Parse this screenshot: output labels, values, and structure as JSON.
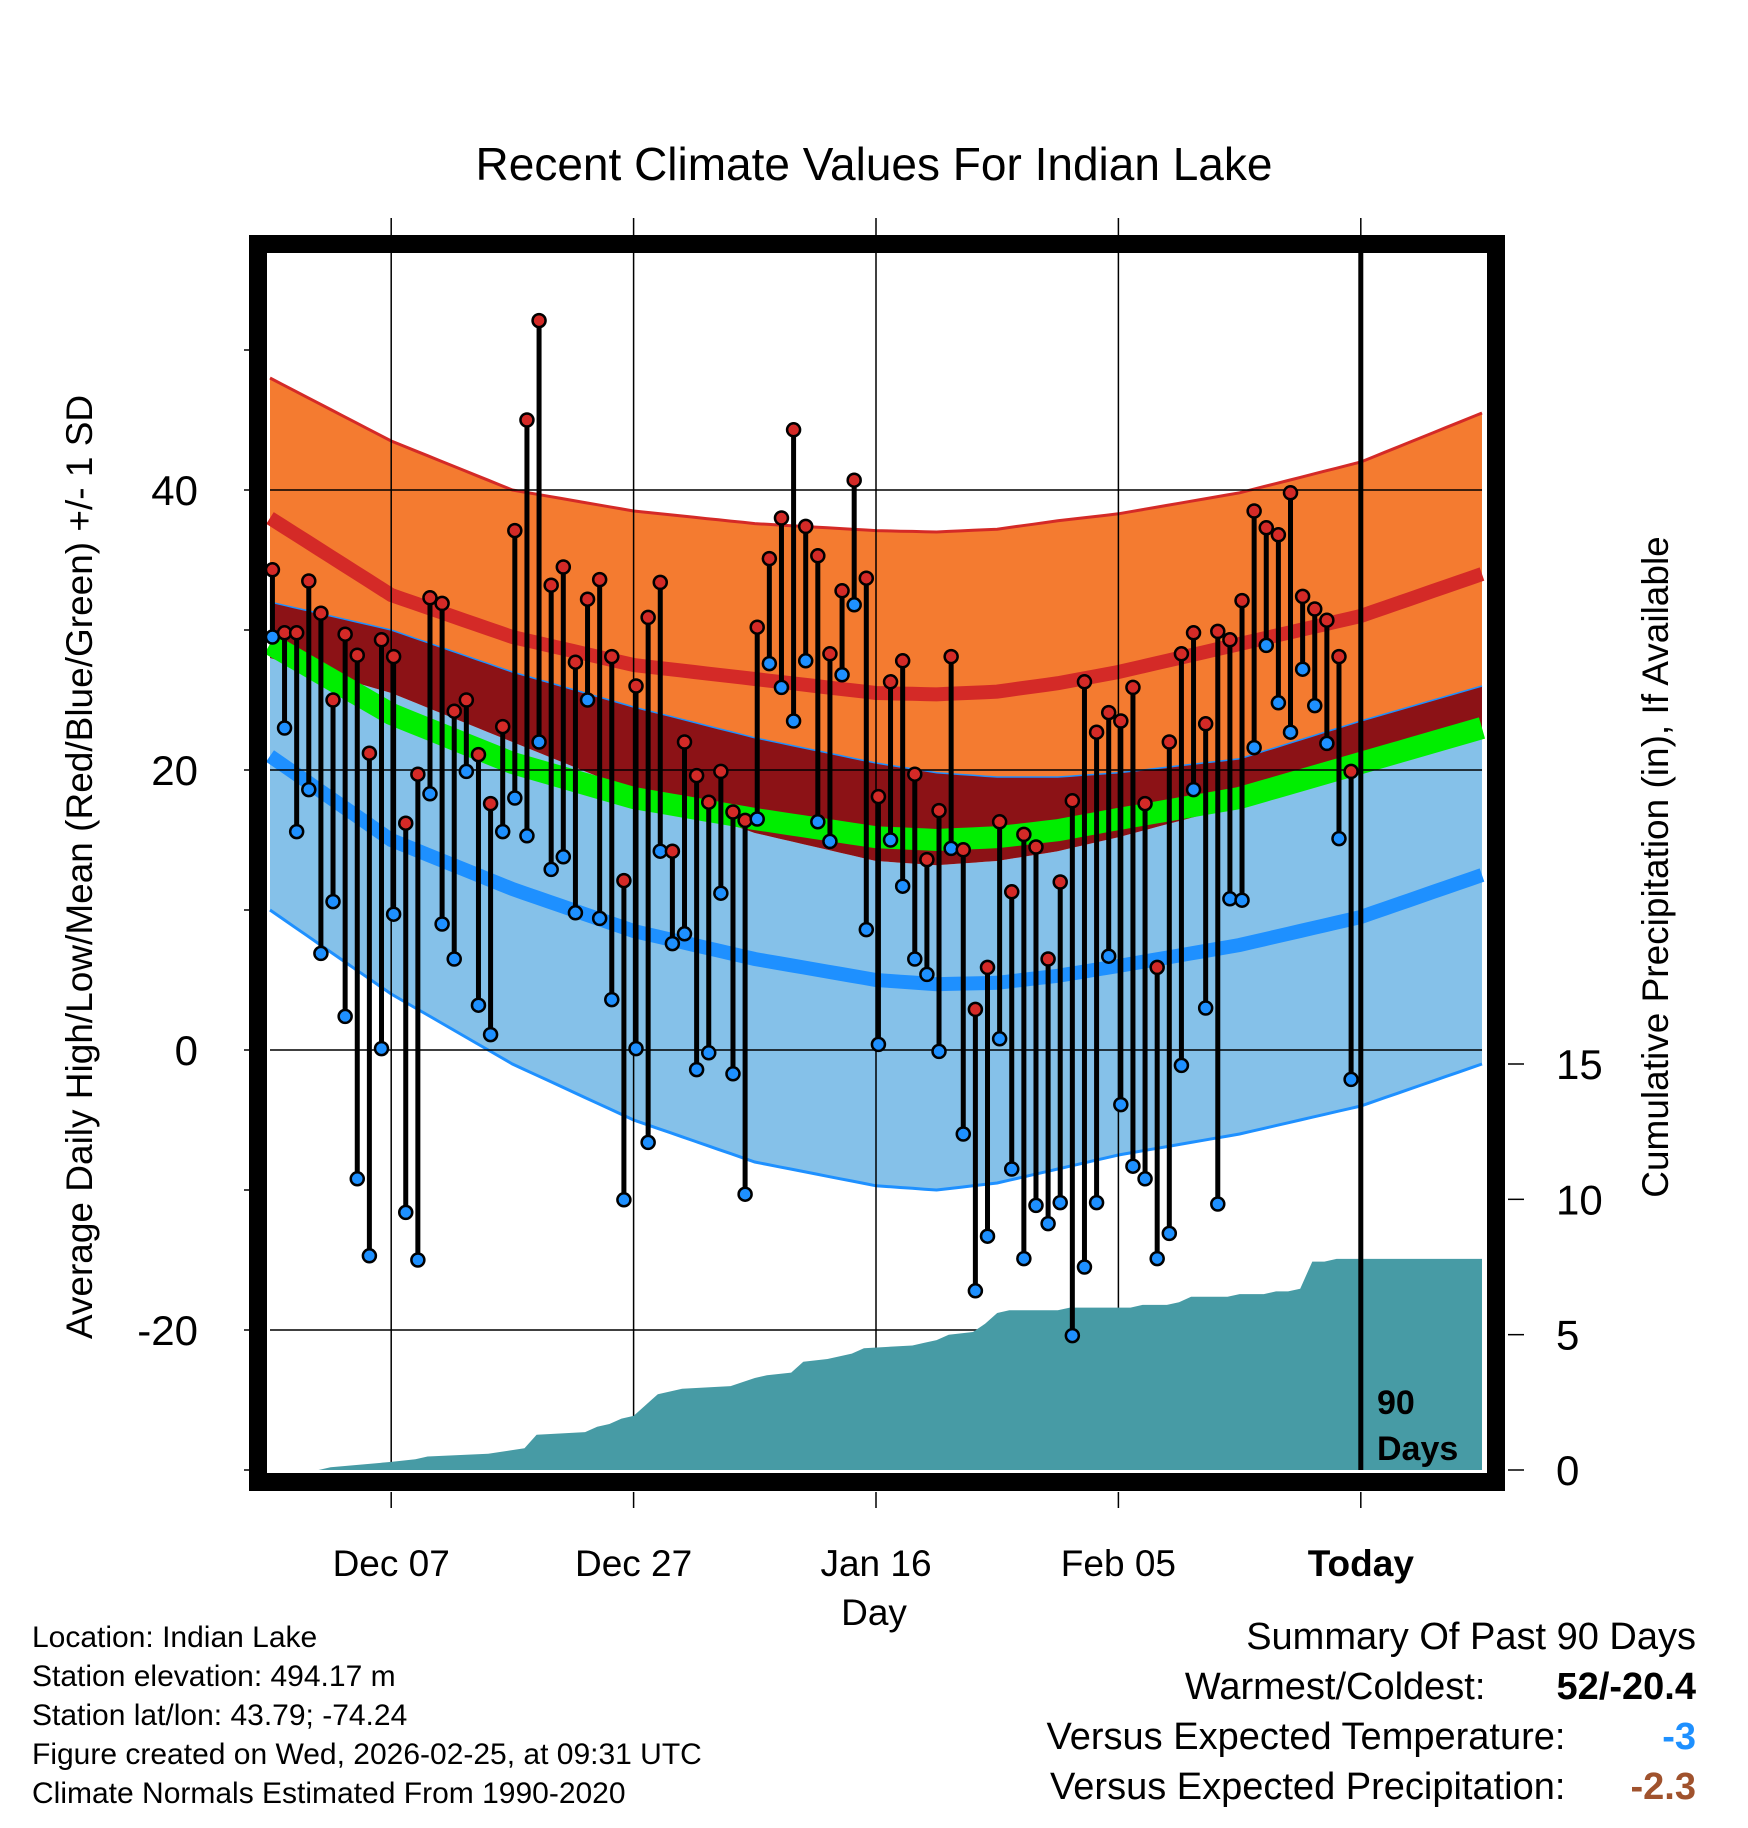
{
  "chart_data": {
    "type": "line",
    "title": "Recent Climate Values For Indian Lake",
    "xlabel": "Day",
    "ylabel": "Average Daily High/Low/Mean (Red/Blue/Green) +/- 1 SD",
    "y2label": "Cumulative Precipitation (in), If Available",
    "ylim": [
      -30,
      57
    ],
    "y2lim": [
      0,
      45
    ],
    "yticks": [
      -20,
      0,
      20,
      40
    ],
    "y2ticks": [
      0,
      5,
      10,
      15
    ],
    "xlim": [
      0,
      100
    ],
    "xticks": [
      {
        "day": 10,
        "label": "Dec 07"
      },
      {
        "day": 30,
        "label": "Dec 27"
      },
      {
        "day": 50,
        "label": "Jan 16"
      },
      {
        "day": 70,
        "label": "Feb 05"
      },
      {
        "day": 90,
        "label": "Today"
      }
    ],
    "today_day": 90,
    "marker_label": [
      "90",
      "Days"
    ],
    "normals": {
      "days": [
        0,
        10,
        20,
        30,
        40,
        50,
        55,
        60,
        65,
        70,
        80,
        90,
        100
      ],
      "high_mean": [
        38,
        32.5,
        29.5,
        27.5,
        26.5,
        25.5,
        25.4,
        25.6,
        26.2,
        27,
        29,
        31,
        34
      ],
      "high_sd_upper": [
        48,
        43.5,
        40,
        38.5,
        37.6,
        37.1,
        37,
        37.2,
        37.8,
        38.3,
        39.8,
        42,
        45.5
      ],
      "high_sd_lower": [
        32,
        30,
        27,
        24.5,
        22.3,
        20.5,
        19.8,
        19.5,
        19.5,
        19.8,
        20.8,
        23.5,
        26
      ],
      "low_mean": [
        21,
        15,
        11.5,
        8.5,
        6.5,
        5,
        4.7,
        4.8,
        5.3,
        6,
        7.5,
        9.5,
        12.5
      ],
      "low_sd_upper": [
        28,
        25.5,
        22,
        18.5,
        15.5,
        13.5,
        13.2,
        13.5,
        14.2,
        15.2,
        17.5,
        20,
        22.5
      ],
      "low_sd_lower": [
        10,
        4,
        -1,
        -5,
        -8,
        -9.7,
        -10,
        -9.5,
        -8.5,
        -7.5,
        -6,
        -4,
        -1
      ],
      "avg_mean": [
        29,
        24,
        20.5,
        18,
        16.5,
        15.2,
        15,
        15.2,
        15.7,
        16.5,
        18,
        20.5,
        23
      ]
    },
    "observed": {
      "days": [
        0,
        1,
        2,
        3,
        4,
        5,
        6,
        7,
        8,
        9,
        10,
        11,
        12,
        13,
        14,
        15,
        16,
        17,
        18,
        19,
        20,
        21,
        22,
        23,
        24,
        25,
        26,
        27,
        28,
        29,
        30,
        31,
        32,
        33,
        34,
        35,
        36,
        37,
        38,
        39,
        40,
        41,
        42,
        43,
        44,
        45,
        46,
        47,
        48,
        49,
        50,
        51,
        52,
        53,
        54,
        55,
        56,
        57,
        58,
        59,
        60,
        61,
        62,
        63,
        64,
        65,
        66,
        67,
        68,
        69,
        70,
        71,
        72,
        73,
        74,
        75,
        76,
        77,
        78,
        79,
        80,
        81,
        82,
        83,
        84,
        85,
        86,
        87,
        88,
        89
      ],
      "high": [
        34.3,
        29.8,
        29.8,
        33.5,
        31.2,
        25,
        29.7,
        28.2,
        21.2,
        29.3,
        28.1,
        16.2,
        19.7,
        32.3,
        31.9,
        24.2,
        25,
        21.1,
        17.6,
        23.1,
        37.1,
        45,
        52.1,
        33.2,
        34.5,
        27.7,
        32.2,
        33.6,
        28.1,
        12.1,
        26,
        30.9,
        33.4,
        14.2,
        22,
        19.6,
        17.7,
        19.9,
        17,
        16.4,
        30.2,
        35.1,
        38,
        44.3,
        37.4,
        35.3,
        28.3,
        32.8,
        40.7,
        33.7,
        18.1,
        26.3,
        27.8,
        19.7,
        13.6,
        17.1,
        28.1,
        14.3,
        2.9,
        5.9,
        16.3,
        11.3,
        15.4,
        14.5,
        6.5,
        12,
        17.8,
        26.3,
        22.7,
        24.1,
        23.5,
        25.9,
        17.6,
        5.9,
        22,
        28.3,
        29.8,
        23.3,
        29.9,
        29.3,
        32.1,
        38.5,
        37.3,
        36.8,
        39.8,
        32.4,
        31.5,
        30.7,
        28.1,
        19.9
      ],
      "low": [
        29.5,
        23,
        15.6,
        18.6,
        6.9,
        10.6,
        2.4,
        -9.2,
        -14.7,
        0.1,
        9.7,
        -11.6,
        -15,
        18.3,
        9,
        6.5,
        19.9,
        3.2,
        1.1,
        15.6,
        18,
        15.3,
        22,
        12.9,
        13.8,
        9.8,
        25,
        9.4,
        3.6,
        -10.7,
        0.1,
        -6.6,
        14.2,
        7.6,
        8.3,
        -1.4,
        -0.2,
        11.2,
        -1.7,
        -10.3,
        16.5,
        27.6,
        25.9,
        23.5,
        27.8,
        16.3,
        14.9,
        26.8,
        31.8,
        8.6,
        0.4,
        15,
        11.7,
        6.5,
        5.4,
        -0.1,
        14.4,
        -6,
        -17.2,
        -13.3,
        0.8,
        -8.5,
        -14.9,
        -11.1,
        -12.4,
        -10.9,
        -20.4,
        -15.5,
        -10.9,
        6.7,
        -3.9,
        -8.3,
        -9.2,
        -14.9,
        -13.1,
        -1.1,
        18.6,
        3,
        -11,
        10.8,
        10.7,
        21.6,
        28.9,
        24.8,
        22.7,
        27.2,
        24.6,
        21.9,
        15.1,
        -2.1
      ]
    },
    "precip": {
      "days": [
        0,
        4,
        5,
        10,
        12,
        13,
        18,
        21,
        22,
        26,
        27,
        28,
        29,
        30,
        32,
        33,
        34,
        38,
        40,
        41,
        43,
        44,
        46,
        48,
        49,
        53,
        54,
        55,
        56,
        58,
        59,
        60,
        61,
        62,
        63,
        64,
        65,
        66,
        67,
        68,
        69,
        70,
        71,
        72,
        73,
        74,
        75,
        76,
        77,
        78,
        79,
        80,
        81,
        82,
        83,
        84,
        85,
        86,
        87,
        88,
        89,
        92,
        94,
        100
      ],
      "values": [
        0,
        0,
        0.1,
        0.3,
        0.4,
        0.5,
        0.6,
        0.8,
        1.3,
        1.4,
        1.6,
        1.7,
        1.9,
        2,
        2.8,
        2.9,
        3,
        3.1,
        3.4,
        3.5,
        3.6,
        4,
        4.1,
        4.3,
        4.5,
        4.6,
        4.7,
        4.8,
        5,
        5.1,
        5.4,
        5.8,
        5.9,
        5.9,
        5.9,
        5.9,
        5.9,
        6,
        6,
        6,
        6,
        6,
        6,
        6.1,
        6.1,
        6.1,
        6.2,
        6.4,
        6.4,
        6.4,
        6.4,
        6.5,
        6.5,
        6.5,
        6.6,
        6.6,
        6.7,
        7.7,
        7.7,
        7.8,
        7.8,
        7.8,
        7.8,
        7.8
      ]
    },
    "colors": {
      "high_band": "#f47b30",
      "high_line": "#d42a27",
      "low_band": "#85c1e9",
      "low_line": "#1e90ff",
      "overlap": "#8c1216",
      "mean": "#00ee00",
      "precip": "#479ba5",
      "high_dot": "#d42a27",
      "low_dot": "#1e90ff"
    }
  },
  "location_info": [
    "Location: Indian Lake",
    "Station elevation: 494.17 m",
    "Station lat/lon: 43.79; -74.24",
    "Figure created on Wed, 2026-02-25, at 09:31 UTC",
    "Climate Normals Estimated From 1990-2020"
  ],
  "summary": {
    "title": "Summary Of Past 90 Days",
    "warmest_coldest_label": "Warmest/Coldest:",
    "warmest_coldest_value": "52/-20.4",
    "temp_label": "Versus Expected Temperature:",
    "temp_value": "-3",
    "temp_color": "#1e90ff",
    "precip_label": "Versus Expected Precipitation:",
    "precip_value": "-2.3",
    "precip_color": "#a0522d"
  }
}
